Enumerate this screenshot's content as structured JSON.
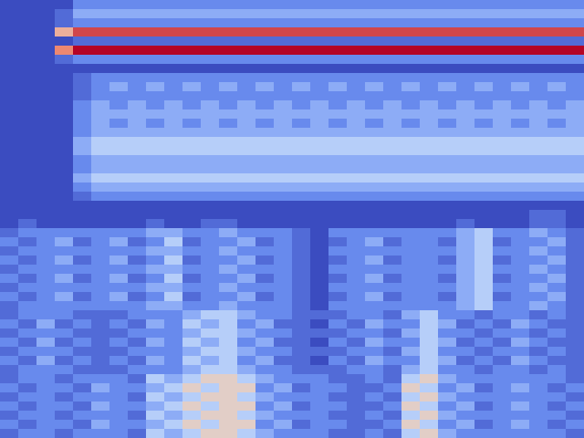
{
  "chart_data": {
    "type": "heatmap",
    "zlim": [
      0,
      9
    ],
    "cells": [
      [
        0,
        0,
        0,
        0,
        2,
        2,
        2,
        2,
        2,
        2,
        2,
        2,
        2,
        2,
        2,
        2,
        2,
        2,
        2,
        2,
        2,
        2,
        2,
        2,
        2,
        2,
        2,
        2,
        2,
        2,
        2,
        2
      ],
      [
        0,
        0,
        0,
        1,
        3,
        3,
        3,
        3,
        3,
        3,
        3,
        3,
        3,
        3,
        3,
        3,
        3,
        3,
        3,
        3,
        3,
        3,
        3,
        3,
        3,
        3,
        3,
        3,
        3,
        3,
        3,
        3
      ],
      [
        0,
        0,
        0,
        1,
        2,
        2,
        2,
        2,
        2,
        2,
        2,
        2,
        2,
        2,
        2,
        2,
        2,
        2,
        2,
        2,
        2,
        2,
        2,
        2,
        2,
        2,
        2,
        2,
        2,
        2,
        2,
        2
      ],
      [
        0,
        0,
        0,
        6,
        8,
        8,
        8,
        8,
        8,
        8,
        8,
        8,
        8,
        8,
        8,
        8,
        8,
        8,
        8,
        8,
        8,
        8,
        8,
        8,
        8,
        8,
        8,
        8,
        8,
        8,
        8,
        8
      ],
      [
        0,
        0,
        0,
        0,
        1,
        1,
        1,
        1,
        1,
        1,
        1,
        1,
        1,
        1,
        1,
        1,
        1,
        1,
        1,
        1,
        1,
        1,
        1,
        1,
        1,
        1,
        1,
        1,
        1,
        1,
        1,
        1
      ],
      [
        0,
        0,
        0,
        7,
        9,
        9,
        9,
        9,
        9,
        9,
        9,
        9,
        9,
        9,
        9,
        9,
        9,
        9,
        9,
        9,
        9,
        9,
        9,
        9,
        9,
        9,
        9,
        9,
        9,
        9,
        9,
        9
      ],
      [
        0,
        0,
        0,
        1,
        2,
        2,
        2,
        2,
        2,
        2,
        2,
        2,
        2,
        2,
        2,
        2,
        2,
        2,
        2,
        2,
        2,
        2,
        2,
        2,
        2,
        2,
        2,
        2,
        2,
        2,
        2,
        2
      ],
      [
        0,
        0,
        0,
        0,
        0,
        0,
        0,
        0,
        0,
        0,
        0,
        0,
        0,
        0,
        0,
        0,
        0,
        0,
        0,
        0,
        0,
        0,
        0,
        0,
        0,
        0,
        0,
        0,
        0,
        0,
        0,
        0
      ],
      [
        0,
        0,
        0,
        0,
        1,
        2,
        2,
        2,
        2,
        2,
        2,
        2,
        2,
        2,
        2,
        2,
        2,
        2,
        2,
        2,
        2,
        2,
        2,
        2,
        2,
        2,
        2,
        2,
        2,
        2,
        2,
        2
      ],
      [
        0,
        0,
        0,
        0,
        1,
        2,
        3,
        2,
        3,
        2,
        3,
        2,
        3,
        2,
        3,
        2,
        3,
        2,
        3,
        2,
        3,
        2,
        3,
        2,
        3,
        2,
        3,
        2,
        3,
        2,
        3,
        2
      ],
      [
        0,
        0,
        0,
        0,
        1,
        2,
        2,
        2,
        2,
        2,
        2,
        2,
        2,
        2,
        2,
        2,
        2,
        2,
        2,
        2,
        2,
        2,
        2,
        2,
        2,
        2,
        2,
        2,
        2,
        2,
        2,
        2
      ],
      [
        0,
        0,
        0,
        0,
        2,
        3,
        2,
        3,
        2,
        3,
        2,
        3,
        2,
        3,
        2,
        3,
        2,
        3,
        2,
        3,
        2,
        3,
        2,
        3,
        2,
        3,
        2,
        3,
        2,
        3,
        2,
        3
      ],
      [
        0,
        0,
        0,
        0,
        2,
        3,
        3,
        3,
        3,
        3,
        3,
        3,
        3,
        3,
        3,
        3,
        3,
        3,
        3,
        3,
        3,
        3,
        3,
        3,
        3,
        3,
        3,
        3,
        3,
        3,
        3,
        3
      ],
      [
        0,
        0,
        0,
        0,
        2,
        3,
        2,
        3,
        2,
        3,
        2,
        3,
        2,
        3,
        2,
        3,
        2,
        3,
        2,
        3,
        2,
        3,
        2,
        3,
        2,
        3,
        2,
        3,
        2,
        3,
        2,
        3
      ],
      [
        0,
        0,
        0,
        0,
        2,
        3,
        3,
        3,
        3,
        3,
        3,
        3,
        3,
        3,
        3,
        3,
        3,
        3,
        3,
        3,
        3,
        3,
        3,
        3,
        3,
        3,
        3,
        3,
        3,
        3,
        3,
        3
      ],
      [
        0,
        0,
        0,
        0,
        3,
        4,
        4,
        4,
        4,
        4,
        4,
        4,
        4,
        4,
        4,
        4,
        4,
        4,
        4,
        4,
        4,
        4,
        4,
        4,
        4,
        4,
        4,
        4,
        4,
        4,
        4,
        4
      ],
      [
        0,
        0,
        0,
        0,
        3,
        4,
        4,
        4,
        4,
        4,
        4,
        4,
        4,
        4,
        4,
        4,
        4,
        4,
        4,
        4,
        4,
        4,
        4,
        4,
        4,
        4,
        4,
        4,
        4,
        4,
        4,
        4
      ],
      [
        0,
        0,
        0,
        0,
        2,
        3,
        3,
        3,
        3,
        3,
        3,
        3,
        3,
        3,
        3,
        3,
        3,
        3,
        3,
        3,
        3,
        3,
        3,
        3,
        3,
        3,
        3,
        3,
        3,
        3,
        3,
        3
      ],
      [
        0,
        0,
        0,
        0,
        2,
        3,
        3,
        3,
        3,
        3,
        3,
        3,
        3,
        3,
        3,
        3,
        3,
        3,
        3,
        3,
        3,
        3,
        3,
        3,
        3,
        3,
        3,
        3,
        3,
        3,
        3,
        3
      ],
      [
        0,
        0,
        0,
        0,
        3,
        4,
        4,
        4,
        4,
        4,
        4,
        4,
        4,
        4,
        4,
        4,
        4,
        4,
        4,
        4,
        4,
        4,
        4,
        4,
        4,
        4,
        4,
        4,
        4,
        4,
        4,
        4
      ],
      [
        0,
        0,
        0,
        0,
        2,
        3,
        3,
        3,
        3,
        3,
        3,
        3,
        3,
        3,
        3,
        3,
        3,
        3,
        3,
        3,
        3,
        3,
        3,
        3,
        3,
        3,
        3,
        3,
        3,
        3,
        3,
        3
      ],
      [
        0,
        0,
        0,
        0,
        1,
        2,
        2,
        2,
        2,
        2,
        2,
        2,
        2,
        2,
        2,
        2,
        2,
        2,
        2,
        2,
        2,
        2,
        2,
        2,
        2,
        2,
        2,
        2,
        2,
        2,
        2,
        2
      ],
      [
        0,
        0,
        0,
        0,
        0,
        0,
        0,
        0,
        0,
        0,
        0,
        0,
        0,
        0,
        0,
        0,
        0,
        0,
        0,
        0,
        0,
        0,
        0,
        0,
        0,
        0,
        0,
        0,
        0,
        0,
        0,
        0
      ],
      [
        0,
        0,
        0,
        0,
        0,
        0,
        0,
        0,
        0,
        0,
        0,
        0,
        0,
        0,
        0,
        0,
        0,
        0,
        0,
        0,
        0,
        0,
        0,
        0,
        0,
        0,
        0,
        0,
        0,
        1,
        1,
        0
      ],
      [
        0,
        1,
        0,
        0,
        0,
        0,
        0,
        0,
        1,
        0,
        0,
        1,
        1,
        0,
        0,
        0,
        0,
        0,
        0,
        0,
        0,
        0,
        0,
        0,
        0,
        1,
        0,
        0,
        0,
        1,
        1,
        0
      ],
      [
        1,
        2,
        2,
        2,
        2,
        2,
        2,
        2,
        3,
        3,
        2,
        2,
        3,
        2,
        2,
        2,
        1,
        0,
        2,
        2,
        2,
        2,
        2,
        2,
        2,
        3,
        4,
        2,
        2,
        3,
        2,
        1
      ],
      [
        2,
        1,
        2,
        3,
        1,
        2,
        3,
        1,
        2,
        4,
        1,
        2,
        2,
        3,
        1,
        2,
        1,
        0,
        1,
        2,
        3,
        1,
        2,
        2,
        1,
        3,
        4,
        1,
        2,
        2,
        3,
        1
      ],
      [
        1,
        2,
        2,
        2,
        2,
        2,
        2,
        2,
        3,
        3,
        2,
        2,
        3,
        2,
        2,
        2,
        1,
        0,
        2,
        2,
        2,
        2,
        2,
        2,
        2,
        3,
        4,
        2,
        2,
        3,
        2,
        1
      ],
      [
        2,
        1,
        2,
        3,
        1,
        2,
        3,
        1,
        2,
        4,
        1,
        2,
        2,
        3,
        1,
        2,
        1,
        0,
        1,
        2,
        3,
        1,
        2,
        2,
        1,
        3,
        4,
        1,
        2,
        2,
        3,
        1
      ],
      [
        1,
        2,
        2,
        2,
        2,
        2,
        2,
        2,
        3,
        3,
        2,
        2,
        3,
        2,
        2,
        2,
        1,
        0,
        2,
        2,
        2,
        2,
        2,
        2,
        2,
        3,
        4,
        2,
        2,
        3,
        2,
        1
      ],
      [
        2,
        1,
        2,
        3,
        1,
        2,
        3,
        1,
        2,
        4,
        1,
        2,
        2,
        3,
        1,
        2,
        1,
        0,
        1,
        2,
        3,
        1,
        2,
        2,
        1,
        3,
        4,
        1,
        2,
        2,
        3,
        1
      ],
      [
        1,
        2,
        2,
        2,
        2,
        2,
        2,
        2,
        3,
        3,
        2,
        2,
        3,
        2,
        2,
        2,
        1,
        0,
        2,
        2,
        2,
        2,
        2,
        2,
        2,
        3,
        4,
        2,
        2,
        3,
        2,
        1
      ],
      [
        2,
        1,
        2,
        3,
        1,
        2,
        3,
        1,
        2,
        4,
        1,
        2,
        2,
        3,
        1,
        2,
        1,
        0,
        1,
        2,
        3,
        1,
        2,
        2,
        1,
        3,
        4,
        1,
        2,
        2,
        3,
        1
      ],
      [
        1,
        2,
        2,
        2,
        2,
        2,
        2,
        2,
        3,
        3,
        2,
        2,
        3,
        2,
        2,
        2,
        1,
        0,
        2,
        2,
        2,
        2,
        2,
        2,
        2,
        3,
        4,
        2,
        2,
        3,
        2,
        1
      ],
      [
        1,
        2,
        2,
        2,
        1,
        1,
        1,
        2,
        2,
        2,
        3,
        4,
        4,
        3,
        2,
        2,
        1,
        1,
        1,
        2,
        2,
        1,
        3,
        4,
        2,
        2,
        1,
        2,
        2,
        1,
        2,
        1
      ],
      [
        2,
        1,
        3,
        1,
        2,
        1,
        2,
        1,
        3,
        2,
        4,
        3,
        4,
        2,
        3,
        1,
        1,
        0,
        2,
        1,
        3,
        2,
        2,
        4,
        3,
        1,
        2,
        1,
        3,
        2,
        1,
        1
      ],
      [
        1,
        2,
        2,
        2,
        1,
        1,
        1,
        2,
        2,
        2,
        3,
        4,
        4,
        3,
        2,
        2,
        1,
        1,
        1,
        2,
        2,
        1,
        3,
        4,
        2,
        2,
        1,
        2,
        2,
        1,
        2,
        1
      ],
      [
        2,
        1,
        3,
        1,
        2,
        1,
        2,
        1,
        3,
        2,
        4,
        3,
        4,
        2,
        3,
        1,
        1,
        0,
        2,
        1,
        3,
        2,
        2,
        4,
        3,
        1,
        2,
        1,
        3,
        2,
        1,
        1
      ],
      [
        1,
        2,
        2,
        2,
        1,
        1,
        1,
        2,
        2,
        2,
        3,
        4,
        4,
        3,
        2,
        2,
        1,
        1,
        1,
        2,
        2,
        1,
        3,
        4,
        2,
        2,
        1,
        2,
        2,
        1,
        2,
        1
      ],
      [
        2,
        1,
        3,
        1,
        2,
        1,
        2,
        1,
        3,
        2,
        4,
        3,
        4,
        2,
        3,
        1,
        1,
        0,
        2,
        1,
        3,
        2,
        2,
        4,
        3,
        1,
        2,
        1,
        3,
        2,
        1,
        1
      ],
      [
        1,
        2,
        2,
        2,
        1,
        1,
        1,
        2,
        2,
        2,
        3,
        4,
        4,
        3,
        2,
        2,
        1,
        1,
        1,
        2,
        2,
        1,
        3,
        4,
        2,
        2,
        1,
        2,
        2,
        1,
        2,
        1
      ],
      [
        1,
        2,
        2,
        1,
        2,
        2,
        2,
        1,
        4,
        3,
        4,
        5,
        5,
        4,
        3,
        2,
        2,
        2,
        1,
        1,
        2,
        1,
        4,
        5,
        3,
        2,
        2,
        2,
        2,
        2,
        2,
        1
      ],
      [
        2,
        1,
        2,
        2,
        1,
        3,
        2,
        2,
        3,
        4,
        5,
        4,
        5,
        5,
        2,
        3,
        1,
        2,
        2,
        1,
        1,
        2,
        5,
        4,
        2,
        3,
        1,
        2,
        3,
        2,
        1,
        2
      ],
      [
        1,
        2,
        2,
        1,
        2,
        2,
        2,
        1,
        4,
        3,
        4,
        5,
        5,
        4,
        3,
        2,
        2,
        2,
        1,
        1,
        2,
        1,
        4,
        5,
        3,
        2,
        2,
        2,
        2,
        2,
        2,
        1
      ],
      [
        2,
        1,
        2,
        2,
        1,
        3,
        2,
        2,
        3,
        4,
        5,
        4,
        5,
        5,
        2,
        3,
        1,
        2,
        2,
        1,
        1,
        2,
        5,
        4,
        2,
        3,
        1,
        2,
        3,
        2,
        1,
        2
      ],
      [
        1,
        2,
        2,
        1,
        2,
        2,
        2,
        1,
        4,
        3,
        4,
        5,
        5,
        4,
        3,
        2,
        2,
        2,
        1,
        1,
        2,
        1,
        4,
        5,
        3,
        2,
        2,
        2,
        2,
        2,
        2,
        1
      ],
      [
        2,
        1,
        2,
        2,
        1,
        3,
        2,
        2,
        3,
        4,
        5,
        4,
        5,
        5,
        2,
        3,
        1,
        2,
        2,
        1,
        1,
        2,
        5,
        4,
        2,
        3,
        1,
        2,
        3,
        2,
        1,
        2
      ],
      [
        1,
        2,
        2,
        1,
        2,
        2,
        2,
        1,
        4,
        3,
        4,
        5,
        5,
        4,
        3,
        2,
        2,
        2,
        1,
        1,
        2,
        1,
        4,
        5,
        3,
        2,
        2,
        2,
        2,
        2,
        2,
        1
      ]
    ]
  }
}
